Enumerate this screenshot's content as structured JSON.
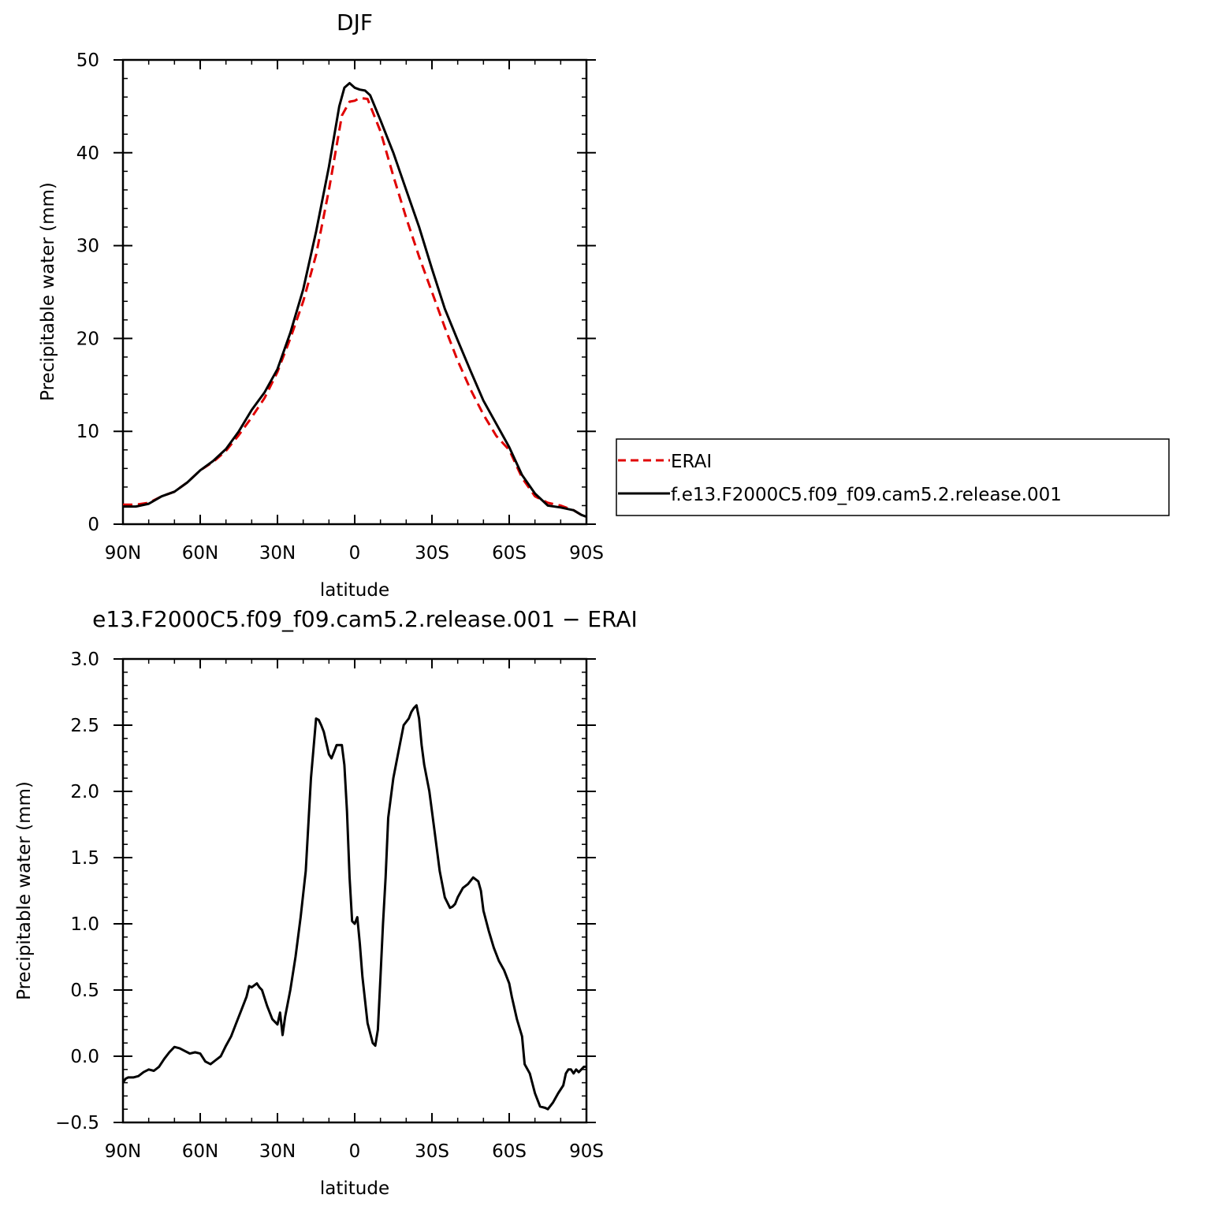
{
  "chart_data": [
    {
      "type": "line",
      "title": "DJF",
      "xlabel": "latitude",
      "ylabel": "Precipitable water (mm)",
      "xlim": [
        90,
        -90
      ],
      "ylim": [
        0,
        50
      ],
      "x_ticks": [
        {
          "value": 90,
          "label": "90N"
        },
        {
          "value": 60,
          "label": "60N"
        },
        {
          "value": 30,
          "label": "30N"
        },
        {
          "value": 0,
          "label": "0"
        },
        {
          "value": -30,
          "label": "30S"
        },
        {
          "value": -60,
          "label": "60S"
        },
        {
          "value": -90,
          "label": "90S"
        }
      ],
      "y_ticks": [
        {
          "value": 0,
          "label": "0"
        },
        {
          "value": 10,
          "label": "10"
        },
        {
          "value": 20,
          "label": "20"
        },
        {
          "value": 30,
          "label": "30"
        },
        {
          "value": 40,
          "label": "40"
        },
        {
          "value": 50,
          "label": "50"
        }
      ],
      "legend": {
        "placement": "right",
        "entries": [
          "ERAI",
          "f.e13.F2000C5.f09_f09.cam5.2.release.001"
        ]
      },
      "series": [
        {
          "name": "ERAI",
          "color": "#e00000",
          "dash": true,
          "x": [
            90,
            85,
            80,
            75,
            70,
            65,
            60,
            55,
            50,
            45,
            40,
            35,
            30,
            25,
            20,
            15,
            10,
            5,
            2,
            0,
            -2,
            -5,
            -10,
            -15,
            -20,
            -25,
            -30,
            -35,
            -40,
            -45,
            -50,
            -55,
            -60,
            -65,
            -70,
            -75,
            -80,
            -85,
            -88,
            -90
          ],
          "y": [
            2.1,
            2.1,
            2.3,
            3.0,
            3.5,
            4.5,
            5.8,
            6.7,
            7.9,
            9.6,
            11.5,
            13.6,
            16.4,
            20.0,
            24.0,
            29.0,
            36.0,
            44.0,
            45.5,
            45.6,
            45.9,
            45.8,
            42.3,
            37.5,
            33.0,
            28.8,
            25.0,
            21.2,
            17.6,
            14.5,
            11.8,
            9.5,
            8.0,
            5.0,
            3.0,
            2.3,
            2.0,
            1.5,
            1.0,
            0.8
          ]
        },
        {
          "name": "f.e13.F2000C5.f09_f09.cam5.2.release.001",
          "color": "#000000",
          "dash": false,
          "x": [
            90,
            85,
            80,
            75,
            70,
            65,
            60,
            55,
            50,
            45,
            40,
            35,
            30,
            25,
            20,
            15,
            10,
            6,
            4,
            2,
            0,
            -2,
            -4,
            -6,
            -10,
            -15,
            -20,
            -25,
            -30,
            -35,
            -40,
            -45,
            -50,
            -55,
            -60,
            -65,
            -70,
            -75,
            -80,
            -85,
            -88,
            -90
          ],
          "y": [
            1.9,
            1.9,
            2.2,
            3.0,
            3.5,
            4.5,
            5.8,
            6.8,
            8.1,
            10.0,
            12.3,
            14.2,
            16.7,
            20.6,
            25.3,
            31.5,
            38.5,
            45.0,
            47.0,
            47.5,
            47.0,
            46.8,
            46.7,
            46.2,
            43.5,
            40.0,
            36.0,
            32.0,
            27.5,
            23.2,
            19.8,
            16.5,
            13.3,
            10.8,
            8.3,
            5.3,
            3.3,
            2.0,
            1.8,
            1.5,
            1.0,
            0.8
          ]
        }
      ]
    },
    {
      "type": "line",
      "title": "e13.F2000C5.f09_f09.cam5.2.release.001 − ERAI",
      "xlabel": "latitude",
      "ylabel": "Precipitable water (mm)",
      "xlim": [
        90,
        -90
      ],
      "ylim": [
        -0.5,
        3.0
      ],
      "x_ticks": [
        {
          "value": 90,
          "label": "90N"
        },
        {
          "value": 60,
          "label": "60N"
        },
        {
          "value": 30,
          "label": "30N"
        },
        {
          "value": 0,
          "label": "0"
        },
        {
          "value": -30,
          "label": "30S"
        },
        {
          "value": -60,
          "label": "60S"
        },
        {
          "value": -90,
          "label": "90S"
        }
      ],
      "y_ticks": [
        {
          "value": -0.5,
          "label": "−0.5"
        },
        {
          "value": 0.0,
          "label": "0.0"
        },
        {
          "value": 0.5,
          "label": "0.5"
        },
        {
          "value": 1.0,
          "label": "1.0"
        },
        {
          "value": 1.5,
          "label": "1.5"
        },
        {
          "value": 2.0,
          "label": "2.0"
        },
        {
          "value": 2.5,
          "label": "2.5"
        },
        {
          "value": 3.0,
          "label": "3.0"
        }
      ],
      "series": [
        {
          "color": "#000000",
          "dash": false,
          "x": [
            90,
            89,
            88,
            86,
            84,
            82,
            80,
            78,
            76,
            74,
            72,
            70,
            68,
            66,
            64,
            62,
            60,
            59,
            58,
            56,
            54,
            52,
            50,
            48,
            46,
            44,
            42,
            41,
            40,
            38,
            37,
            36,
            34,
            32,
            31,
            30,
            29,
            28,
            27,
            25,
            23,
            21,
            19,
            17,
            15,
            14,
            13,
            12,
            10,
            9,
            8,
            7,
            5,
            4,
            3,
            2,
            1,
            0,
            -1,
            -2,
            -3,
            -5,
            -7,
            -8,
            -9,
            -10,
            -11,
            -12,
            -13,
            -15,
            -17,
            -19,
            -21,
            -22,
            -23,
            -24,
            -25,
            -26,
            -27,
            -29,
            -31,
            -33,
            -35,
            -37,
            -38,
            -39,
            -40,
            -42,
            -44,
            -46,
            -48,
            -49,
            -50,
            -52,
            -54,
            -56,
            -58,
            -60,
            -61,
            -63,
            -65,
            -66,
            -68,
            -70,
            -72,
            -74,
            -75,
            -77,
            -79,
            -81,
            -82,
            -83,
            -84,
            -85,
            -86,
            -87,
            -88,
            -89,
            -90
          ],
          "y": [
            -0.2,
            -0.17,
            -0.16,
            -0.16,
            -0.15,
            -0.12,
            -0.1,
            -0.11,
            -0.08,
            -0.02,
            0.03,
            0.07,
            0.06,
            0.04,
            0.02,
            0.03,
            0.02,
            -0.01,
            -0.04,
            -0.06,
            -0.03,
            0.0,
            0.08,
            0.15,
            0.25,
            0.35,
            0.45,
            0.53,
            0.52,
            0.55,
            0.52,
            0.5,
            0.38,
            0.28,
            0.26,
            0.24,
            0.33,
            0.16,
            0.3,
            0.5,
            0.75,
            1.05,
            1.4,
            2.1,
            2.55,
            2.54,
            2.5,
            2.45,
            2.28,
            2.25,
            2.3,
            2.35,
            2.35,
            2.2,
            1.85,
            1.35,
            1.02,
            1.0,
            1.05,
            0.85,
            0.6,
            0.25,
            0.1,
            0.08,
            0.2,
            0.6,
            1.0,
            1.35,
            1.8,
            2.1,
            2.3,
            2.5,
            2.55,
            2.6,
            2.63,
            2.65,
            2.55,
            2.35,
            2.2,
            2.0,
            1.7,
            1.4,
            1.2,
            1.12,
            1.13,
            1.15,
            1.2,
            1.27,
            1.3,
            1.35,
            1.32,
            1.25,
            1.1,
            0.95,
            0.82,
            0.72,
            0.65,
            0.55,
            0.45,
            0.28,
            0.15,
            -0.06,
            -0.13,
            -0.28,
            -0.38,
            -0.39,
            -0.4,
            -0.35,
            -0.28,
            -0.22,
            -0.13,
            -0.1,
            -0.1,
            -0.13,
            -0.1,
            -0.12,
            -0.1,
            -0.08,
            -0.08
          ]
        }
      ]
    }
  ]
}
